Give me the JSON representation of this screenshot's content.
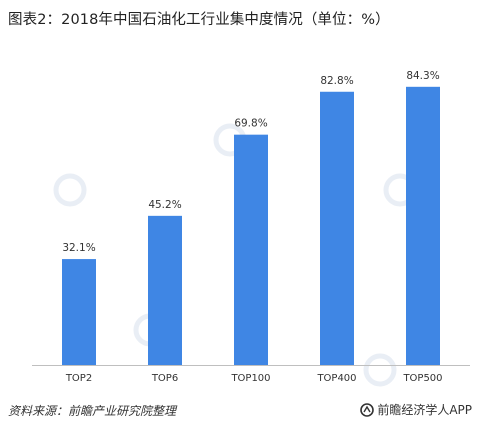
{
  "title": "图表2：2018年中国石油化工行业集中度情况（单位：%）",
  "chart_data": {
    "type": "bar",
    "categories": [
      "TOP2",
      "TOP6",
      "TOP100",
      "TOP400",
      "TOP500"
    ],
    "values": [
      32.1,
      45.2,
      69.8,
      82.8,
      84.3
    ],
    "value_labels": [
      "32.1%",
      "45.2%",
      "69.8%",
      "82.8%",
      "84.3%"
    ],
    "ylim": [
      0,
      100
    ],
    "bar_color": "#3f86e4",
    "grid": false,
    "legend": "none"
  },
  "footer": {
    "source": "资料来源：前瞻产业研究院整理",
    "brand": "前瞻经济学人APP"
  },
  "colors": {
    "bar": "#3f86e4",
    "axis": "#bfbfbf",
    "watermark": "#e9eef5"
  }
}
